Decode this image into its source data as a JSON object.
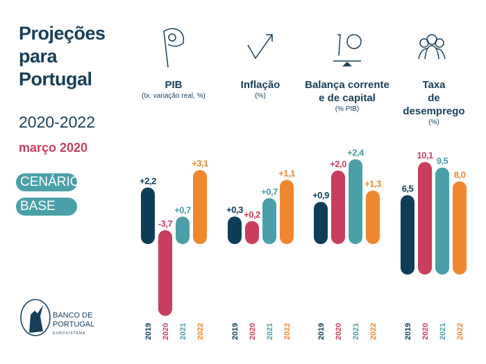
{
  "title_lines": [
    "Projeções",
    "para",
    "Portugal"
  ],
  "period": "2020-2022",
  "date": "março 2020",
  "scenario": [
    "CENÁRIO",
    "BASE"
  ],
  "logo": {
    "line1": "BANCO DE",
    "line2": "PORTUGAL",
    "line3": "EUROSISTEMA"
  },
  "colors": {
    "2019": "#0d3d58",
    "2020": "#c93e5e",
    "2021": "#4a9fa8",
    "2022": "#f0862e"
  },
  "chart_data": [
    {
      "type": "bar",
      "title": "PIB",
      "subtitle": "(tx. variação real, %)",
      "icon": "flag-icon",
      "categories": [
        "2019",
        "2020",
        "2021",
        "2022"
      ],
      "values": [
        2.2,
        -3.7,
        0.7,
        3.1
      ],
      "labels": [
        "+2,2",
        "-3,7",
        "+0,7",
        "+3,1"
      ]
    },
    {
      "type": "bar",
      "title": "Inflação",
      "subtitle": "(%)",
      "icon": "trend-up-icon",
      "categories": [
        "2019",
        "2020",
        "2021",
        "2022"
      ],
      "values": [
        0.3,
        0.2,
        0.7,
        1.1
      ],
      "labels": [
        "+0,3",
        "+0,2",
        "+0,7",
        "+1,1"
      ]
    },
    {
      "type": "bar",
      "title": "Balança corrente e de capital",
      "title_lines": [
        "Balança corrente",
        "e de capital"
      ],
      "subtitle": "(% PIB)",
      "icon": "balance-globe-icon",
      "categories": [
        "2019",
        "2020",
        "2021",
        "2022"
      ],
      "values": [
        0.9,
        2.0,
        2.4,
        1.3
      ],
      "labels": [
        "+0,9",
        "+2,0",
        "+2,4",
        "+1,3"
      ]
    },
    {
      "type": "bar",
      "title": "Taxa de desemprego",
      "title_lines": [
        "Taxa",
        "de desemprego"
      ],
      "subtitle": "(%)",
      "icon": "people-icon",
      "categories": [
        "2019",
        "2020",
        "2021",
        "2022"
      ],
      "values": [
        6.5,
        10.1,
        9.5,
        8.0
      ],
      "labels": [
        "6,5",
        "10,1",
        "9,5",
        "8,0"
      ]
    }
  ]
}
